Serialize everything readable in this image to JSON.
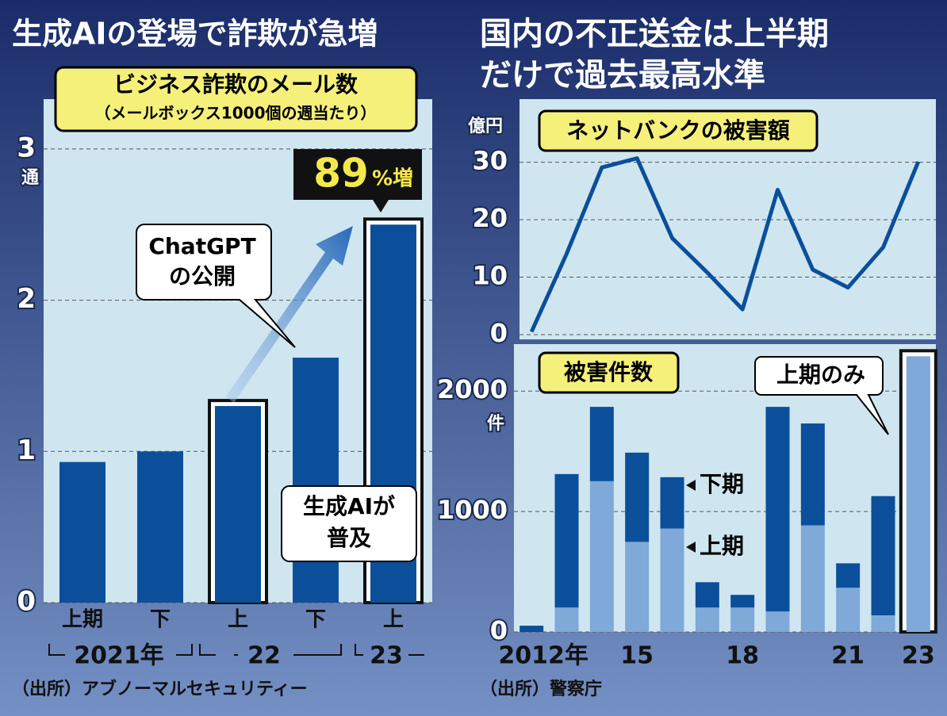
{
  "headlines": [
    "生成AIの登場で詐欺が急増",
    [
      "国内の不正送金は上半期",
      "だけで過去最高水準"
    ]
  ],
  "chart_data": [
    {
      "type": "bar",
      "title": "ビジネス詐欺のメール数",
      "subtitle": "（メールボックス1000個の週当たり）",
      "y_unit": "通",
      "categories": [
        "上期",
        "下",
        "上",
        "下",
        "上"
      ],
      "year_labels": [
        "2021年",
        "22",
        "23"
      ],
      "values": [
        0.93,
        1.0,
        1.3,
        1.62,
        2.5
      ],
      "color": "#0b4f9b",
      "highlighted": [
        2,
        4
      ],
      "ylim": [
        0,
        3.33
      ],
      "yticks": [
        0,
        1,
        2,
        3
      ],
      "grid": true,
      "annotations": [
        [
          "ChatGPT",
          "の公開"
        ],
        [
          "生成AIが",
          "普及"
        ]
      ],
      "growth": {
        "value": 89,
        "unit": "%増"
      },
      "source": "（出所）アブノーマルセキュリティー"
    },
    {
      "type": "line",
      "title": "ネットバンクの被害額",
      "y_unit": "億円",
      "color": "#0b4f9b",
      "values": [
        0.5,
        14.1,
        29.1,
        30.7,
        16.8,
        10.8,
        4.4,
        25.2,
        11.3,
        8.2,
        15.2,
        30.1
      ],
      "ylim": [
        0,
        41
      ],
      "yticks": [
        0,
        10,
        20,
        30
      ],
      "grid": true
    },
    {
      "type": "stacked_bar",
      "title": "被害件数",
      "y_unit": "件",
      "categories": [
        "2012年",
        null,
        null,
        "15",
        null,
        null,
        "18",
        null,
        null,
        "21",
        null,
        "23"
      ],
      "series": [
        {
          "name": "上期",
          "color": "#7ea9d8",
          "values": [
            0,
            203,
            1252,
            748,
            859,
            203,
            203,
            170,
            885,
            367,
            138,
            2289
          ]
        },
        {
          "name": "下期",
          "color": "#0b4f9b",
          "values": [
            52,
            1108,
            617,
            741,
            426,
            210,
            105,
            1699,
            846,
            203,
            990,
            null
          ]
        }
      ],
      "highlighted": [
        11
      ],
      "annotation": "上期のみ",
      "ylim": [
        0,
        2390
      ],
      "yticks": [
        0,
        1000,
        2000
      ],
      "grid": true,
      "source": "（出所）警察庁"
    }
  ]
}
